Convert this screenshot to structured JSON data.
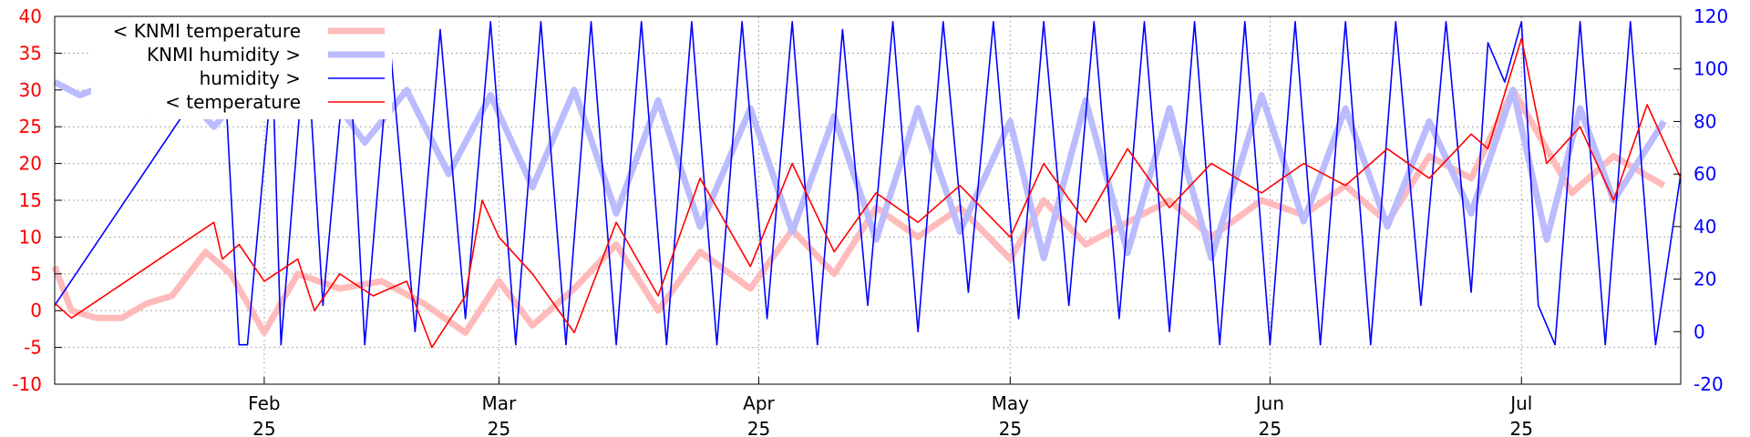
{
  "chart_data": {
    "type": "line",
    "xaxis": {
      "ticks": [
        {
          "date": "2025-02-01",
          "month": "Feb",
          "year": "25"
        },
        {
          "date": "2025-03-01",
          "month": "Mar",
          "year": "25"
        },
        {
          "date": "2025-04-01",
          "month": "Apr",
          "year": "25"
        },
        {
          "date": "2025-05-01",
          "month": "May",
          "year": "25"
        },
        {
          "date": "2025-06-01",
          "month": "Jun",
          "year": "25"
        },
        {
          "date": "2025-07-01",
          "month": "Jul",
          "year": "25"
        }
      ],
      "range": [
        "2025-01-07",
        "2025-07-20"
      ],
      "grid": true
    },
    "yaxis_left": {
      "label": "",
      "ticks": [
        -10,
        -5,
        0,
        5,
        10,
        15,
        20,
        25,
        30,
        35,
        40
      ],
      "range": [
        -10,
        40
      ],
      "color": "#ff0000"
    },
    "yaxis_right": {
      "label": "",
      "ticks": [
        -20,
        0,
        20,
        40,
        60,
        80,
        100,
        120
      ],
      "range": [
        -20,
        120
      ],
      "color": "#0000ff"
    },
    "legend": {
      "placement": "top-left",
      "entries": [
        {
          "label": "< KNMI temperature",
          "color": "#ffbbbb"
        },
        {
          "label": "KNMI humidity >",
          "color": "#bbbbff"
        },
        {
          "label": "humidity >",
          "color": "#0000ff"
        },
        {
          "label": "< temperature",
          "color": "#ff0000"
        }
      ]
    },
    "series": [
      {
        "name": "< KNMI temperature",
        "axis": "left",
        "color": "#ffbbbb",
        "points": [
          [
            "2025-01-07",
            6
          ],
          [
            "2025-01-09",
            0
          ],
          [
            "2025-01-12",
            -1
          ],
          [
            "2025-01-15",
            -1
          ],
          [
            "2025-01-18",
            1
          ],
          [
            "2025-01-21",
            2
          ],
          [
            "2025-01-25",
            8
          ],
          [
            "2025-01-28",
            5
          ],
          [
            "2025-02-01",
            -3
          ],
          [
            "2025-02-05",
            5
          ],
          [
            "2025-02-10",
            3
          ],
          [
            "2025-02-15",
            4
          ],
          [
            "2025-02-20",
            1
          ],
          [
            "2025-02-25",
            -3
          ],
          [
            "2025-03-01",
            4
          ],
          [
            "2025-03-05",
            -2
          ],
          [
            "2025-03-10",
            3
          ],
          [
            "2025-03-15",
            9
          ],
          [
            "2025-03-20",
            0
          ],
          [
            "2025-03-25",
            8
          ],
          [
            "2025-03-31",
            3
          ],
          [
            "2025-04-05",
            11
          ],
          [
            "2025-04-10",
            5
          ],
          [
            "2025-04-15",
            14
          ],
          [
            "2025-04-20",
            10
          ],
          [
            "2025-04-25",
            14
          ],
          [
            "2025-05-01",
            7
          ],
          [
            "2025-05-05",
            15
          ],
          [
            "2025-05-10",
            9
          ],
          [
            "2025-05-15",
            12
          ],
          [
            "2025-05-20",
            15
          ],
          [
            "2025-05-25",
            10
          ],
          [
            "2025-05-31",
            15
          ],
          [
            "2025-06-05",
            13
          ],
          [
            "2025-06-10",
            17
          ],
          [
            "2025-06-15",
            12
          ],
          [
            "2025-06-20",
            21
          ],
          [
            "2025-06-25",
            18
          ],
          [
            "2025-06-30",
            30
          ],
          [
            "2025-07-03",
            24
          ],
          [
            "2025-07-07",
            16
          ],
          [
            "2025-07-12",
            21
          ],
          [
            "2025-07-18",
            17
          ]
        ]
      },
      {
        "name": "KNMI humidity >",
        "axis": "right",
        "color": "#bbbbff",
        "points": [
          [
            "2025-01-07",
            95
          ],
          [
            "2025-01-10",
            90
          ],
          [
            "2025-01-14",
            95
          ],
          [
            "2025-01-18",
            82
          ],
          [
            "2025-01-22",
            92
          ],
          [
            "2025-01-26",
            78
          ],
          [
            "2025-01-30",
            93
          ],
          [
            "2025-02-03",
            88
          ],
          [
            "2025-02-08",
            94
          ],
          [
            "2025-02-13",
            72
          ],
          [
            "2025-02-18",
            92
          ],
          [
            "2025-02-23",
            60
          ],
          [
            "2025-02-28",
            90
          ],
          [
            "2025-03-05",
            55
          ],
          [
            "2025-03-10",
            92
          ],
          [
            "2025-03-15",
            45
          ],
          [
            "2025-03-20",
            88
          ],
          [
            "2025-03-25",
            40
          ],
          [
            "2025-03-31",
            85
          ],
          [
            "2025-04-05",
            38
          ],
          [
            "2025-04-10",
            82
          ],
          [
            "2025-04-15",
            35
          ],
          [
            "2025-04-20",
            85
          ],
          [
            "2025-04-25",
            38
          ],
          [
            "2025-05-01",
            80
          ],
          [
            "2025-05-05",
            28
          ],
          [
            "2025-05-10",
            88
          ],
          [
            "2025-05-15",
            30
          ],
          [
            "2025-05-20",
            85
          ],
          [
            "2025-05-25",
            28
          ],
          [
            "2025-05-31",
            90
          ],
          [
            "2025-06-05",
            42
          ],
          [
            "2025-06-10",
            85
          ],
          [
            "2025-06-15",
            40
          ],
          [
            "2025-06-20",
            80
          ],
          [
            "2025-06-25",
            45
          ],
          [
            "2025-06-30",
            92
          ],
          [
            "2025-07-04",
            35
          ],
          [
            "2025-07-08",
            85
          ],
          [
            "2025-07-12",
            50
          ],
          [
            "2025-07-18",
            80
          ]
        ]
      },
      {
        "name": "humidity >",
        "axis": "right",
        "color": "#0000ff",
        "points": [
          [
            "2025-01-07",
            10
          ],
          [
            "2025-01-26",
            100
          ],
          [
            "2025-01-27",
            115
          ],
          [
            "2025-01-29",
            -5
          ],
          [
            "2025-01-30",
            -5
          ],
          [
            "2025-02-02",
            100
          ],
          [
            "2025-02-03",
            -5
          ],
          [
            "2025-02-06",
            115
          ],
          [
            "2025-02-08",
            10
          ],
          [
            "2025-02-11",
            115
          ],
          [
            "2025-02-13",
            -5
          ],
          [
            "2025-02-16",
            110
          ],
          [
            "2025-02-19",
            0
          ],
          [
            "2025-02-22",
            115
          ],
          [
            "2025-02-25",
            5
          ],
          [
            "2025-02-28",
            118
          ],
          [
            "2025-03-03",
            -5
          ],
          [
            "2025-03-06",
            118
          ],
          [
            "2025-03-09",
            -5
          ],
          [
            "2025-03-12",
            118
          ],
          [
            "2025-03-15",
            -5
          ],
          [
            "2025-03-18",
            118
          ],
          [
            "2025-03-21",
            -5
          ],
          [
            "2025-03-24",
            118
          ],
          [
            "2025-03-27",
            -5
          ],
          [
            "2025-03-30",
            118
          ],
          [
            "2025-04-02",
            5
          ],
          [
            "2025-04-05",
            118
          ],
          [
            "2025-04-08",
            -5
          ],
          [
            "2025-04-11",
            115
          ],
          [
            "2025-04-14",
            10
          ],
          [
            "2025-04-17",
            118
          ],
          [
            "2025-04-20",
            0
          ],
          [
            "2025-04-23",
            118
          ],
          [
            "2025-04-26",
            15
          ],
          [
            "2025-04-29",
            118
          ],
          [
            "2025-05-02",
            5
          ],
          [
            "2025-05-05",
            118
          ],
          [
            "2025-05-08",
            10
          ],
          [
            "2025-05-11",
            118
          ],
          [
            "2025-05-14",
            5
          ],
          [
            "2025-05-17",
            118
          ],
          [
            "2025-05-20",
            0
          ],
          [
            "2025-05-23",
            118
          ],
          [
            "2025-05-26",
            -5
          ],
          [
            "2025-05-29",
            118
          ],
          [
            "2025-06-01",
            -5
          ],
          [
            "2025-06-04",
            118
          ],
          [
            "2025-06-07",
            -5
          ],
          [
            "2025-06-10",
            118
          ],
          [
            "2025-06-13",
            -5
          ],
          [
            "2025-06-16",
            118
          ],
          [
            "2025-06-19",
            10
          ],
          [
            "2025-06-22",
            118
          ],
          [
            "2025-06-25",
            15
          ],
          [
            "2025-06-27",
            110
          ],
          [
            "2025-06-29",
            95
          ],
          [
            "2025-07-01",
            118
          ],
          [
            "2025-07-03",
            10
          ],
          [
            "2025-07-05",
            -5
          ],
          [
            "2025-07-08",
            118
          ],
          [
            "2025-07-11",
            -5
          ],
          [
            "2025-07-14",
            118
          ],
          [
            "2025-07-17",
            -5
          ],
          [
            "2025-07-20",
            60
          ]
        ]
      },
      {
        "name": "< temperature",
        "axis": "left",
        "color": "#ff0000",
        "points": [
          [
            "2025-01-07",
            1
          ],
          [
            "2025-01-09",
            -1
          ],
          [
            "2025-01-26",
            12
          ],
          [
            "2025-01-27",
            7
          ],
          [
            "2025-01-29",
            9
          ],
          [
            "2025-02-01",
            4
          ],
          [
            "2025-02-05",
            7
          ],
          [
            "2025-02-07",
            0
          ],
          [
            "2025-02-10",
            5
          ],
          [
            "2025-02-14",
            2
          ],
          [
            "2025-02-18",
            4
          ],
          [
            "2025-02-21",
            -5
          ],
          [
            "2025-02-25",
            2
          ],
          [
            "2025-02-27",
            15
          ],
          [
            "2025-03-01",
            10
          ],
          [
            "2025-03-05",
            5
          ],
          [
            "2025-03-10",
            -3
          ],
          [
            "2025-03-15",
            12
          ],
          [
            "2025-03-20",
            2
          ],
          [
            "2025-03-25",
            18
          ],
          [
            "2025-03-31",
            6
          ],
          [
            "2025-04-05",
            20
          ],
          [
            "2025-04-10",
            8
          ],
          [
            "2025-04-15",
            16
          ],
          [
            "2025-04-20",
            12
          ],
          [
            "2025-04-25",
            17
          ],
          [
            "2025-05-01",
            10
          ],
          [
            "2025-05-05",
            20
          ],
          [
            "2025-05-10",
            12
          ],
          [
            "2025-05-15",
            22
          ],
          [
            "2025-05-20",
            14
          ],
          [
            "2025-05-25",
            20
          ],
          [
            "2025-05-31",
            16
          ],
          [
            "2025-06-05",
            20
          ],
          [
            "2025-06-10",
            17
          ],
          [
            "2025-06-15",
            22
          ],
          [
            "2025-06-20",
            18
          ],
          [
            "2025-06-25",
            24
          ],
          [
            "2025-06-27",
            22
          ],
          [
            "2025-07-01",
            37
          ],
          [
            "2025-07-04",
            20
          ],
          [
            "2025-07-08",
            25
          ],
          [
            "2025-07-12",
            15
          ],
          [
            "2025-07-16",
            28
          ],
          [
            "2025-07-20",
            18
          ]
        ]
      }
    ]
  }
}
